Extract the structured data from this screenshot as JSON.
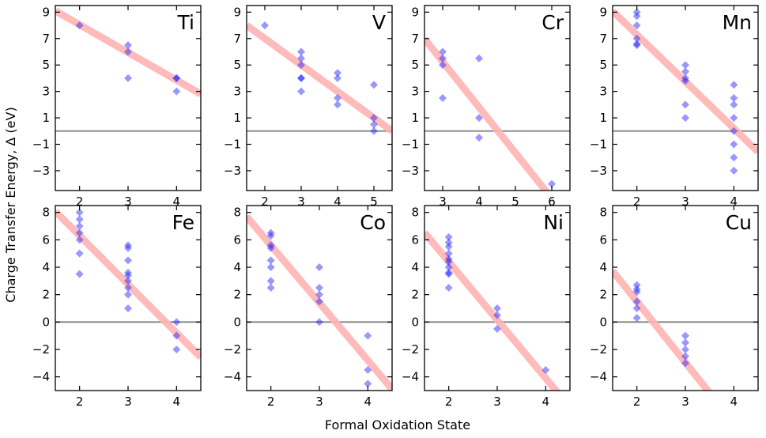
{
  "chart_data": {
    "type": "scatter",
    "xlabel": "Formal Oxidation State",
    "ylabel": "Charge Transfer Energy, Δ (eV)",
    "colors": {
      "points": "#1a1aff",
      "fit": "#ffb3b3",
      "zero_line": "#808080"
    },
    "top_row_yticks": [
      9,
      7,
      5,
      3,
      1,
      -1,
      -3
    ],
    "bottom_row_yticks": [
      8,
      6,
      4,
      2,
      0,
      -2,
      -4
    ],
    "panels": [
      {
        "element": "Ti",
        "xlim": [
          1.5,
          4.5
        ],
        "ylim": [
          -4.5,
          9.5
        ],
        "xticks": [
          2,
          3,
          4
        ],
        "fit": {
          "slope": -2.1,
          "intercept": 12.25
        },
        "points": [
          [
            2,
            8
          ],
          [
            3,
            6.5
          ],
          [
            3,
            6
          ],
          [
            3,
            4
          ],
          [
            4,
            4
          ],
          [
            4,
            4
          ],
          [
            4,
            3
          ]
        ]
      },
      {
        "element": "V",
        "xlim": [
          1.5,
          5.5
        ],
        "ylim": [
          -4.5,
          9.5
        ],
        "xticks": [
          2,
          3,
          4,
          5
        ],
        "fit": {
          "slope": -2.0,
          "intercept": 11.0
        },
        "points": [
          [
            2,
            8
          ],
          [
            3,
            6
          ],
          [
            3,
            5.5
          ],
          [
            3,
            5
          ],
          [
            3,
            4
          ],
          [
            3,
            4
          ],
          [
            3,
            3
          ],
          [
            4,
            4.4
          ],
          [
            4,
            4
          ],
          [
            4,
            2.5
          ],
          [
            4,
            2
          ],
          [
            5,
            3.5
          ],
          [
            5,
            1
          ],
          [
            5,
            0.5
          ],
          [
            5,
            0
          ]
        ]
      },
      {
        "element": "Cr",
        "xlim": [
          2.5,
          6.5
        ],
        "ylim": [
          -4.5,
          9.5
        ],
        "xticks": [
          3,
          4,
          5,
          6
        ],
        "fit": {
          "slope": -3.45,
          "intercept": 15.6
        },
        "points": [
          [
            3,
            6
          ],
          [
            3,
            5.5
          ],
          [
            3,
            5
          ],
          [
            3,
            2.5
          ],
          [
            4,
            5.5
          ],
          [
            4,
            1
          ],
          [
            4,
            -0.5
          ],
          [
            6,
            -4
          ]
        ]
      },
      {
        "element": "Mn",
        "xlim": [
          1.5,
          4.5
        ],
        "ylim": [
          -4.5,
          9.5
        ],
        "xticks": [
          2,
          3,
          4
        ],
        "fit": {
          "slope": -3.55,
          "intercept": 14.4
        },
        "points": [
          [
            2,
            9
          ],
          [
            2,
            8.7
          ],
          [
            2,
            8
          ],
          [
            2,
            7
          ],
          [
            2,
            6.6
          ],
          [
            2,
            6.5
          ],
          [
            3,
            5
          ],
          [
            3,
            4.5
          ],
          [
            3,
            4
          ],
          [
            3,
            3.8
          ],
          [
            3,
            2
          ],
          [
            3,
            1
          ],
          [
            4,
            3.5
          ],
          [
            4,
            2.5
          ],
          [
            4,
            2
          ],
          [
            4,
            1
          ],
          [
            4,
            0
          ],
          [
            4,
            -1
          ],
          [
            4,
            -2
          ],
          [
            4,
            -3
          ]
        ]
      },
      {
        "element": "Fe",
        "xlim": [
          1.5,
          4.5
        ],
        "ylim": [
          -5,
          8.5
        ],
        "xticks": [
          2,
          3,
          4
        ],
        "fit": {
          "slope": -3.55,
          "intercept": 13.4
        },
        "points": [
          [
            2,
            8
          ],
          [
            2,
            7.5
          ],
          [
            2,
            7
          ],
          [
            2,
            6.5
          ],
          [
            2,
            6
          ],
          [
            2,
            5
          ],
          [
            2,
            3.5
          ],
          [
            3,
            5.6
          ],
          [
            3,
            5.4
          ],
          [
            3,
            4.5
          ],
          [
            3,
            3.6
          ],
          [
            3,
            3.4
          ],
          [
            3,
            3
          ],
          [
            3,
            2.5
          ],
          [
            3,
            2
          ],
          [
            3,
            1
          ],
          [
            4,
            0
          ],
          [
            4,
            -1
          ],
          [
            4,
            -2
          ]
        ]
      },
      {
        "element": "Co",
        "xlim": [
          1.5,
          4.5
        ],
        "ylim": [
          -5,
          8.5
        ],
        "xticks": [
          2,
          3,
          4
        ],
        "fit": {
          "slope": -4.2,
          "intercept": 14.0
        },
        "points": [
          [
            2,
            6.5
          ],
          [
            2,
            6.3
          ],
          [
            2,
            5.6
          ],
          [
            2,
            5.4
          ],
          [
            2,
            4.5
          ],
          [
            2,
            4
          ],
          [
            2,
            3
          ],
          [
            2,
            2.5
          ],
          [
            3,
            4
          ],
          [
            3,
            2.5
          ],
          [
            3,
            2
          ],
          [
            3,
            1.5
          ],
          [
            3,
            0
          ],
          [
            4,
            -1
          ],
          [
            4,
            -3.5
          ],
          [
            4,
            -4.5
          ]
        ]
      },
      {
        "element": "Ni",
        "xlim": [
          1.5,
          4.5
        ],
        "ylim": [
          -5,
          8.5
        ],
        "xticks": [
          2,
          3,
          4
        ],
        "fit": {
          "slope": -4.25,
          "intercept": 12.9
        },
        "points": [
          [
            2,
            6.2
          ],
          [
            2,
            5.8
          ],
          [
            2,
            5.5
          ],
          [
            2,
            5
          ],
          [
            2,
            4.6
          ],
          [
            2,
            4.4
          ],
          [
            2,
            4
          ],
          [
            2,
            3.6
          ],
          [
            2,
            3.5
          ],
          [
            2,
            2.5
          ],
          [
            3,
            1
          ],
          [
            3,
            0.5
          ],
          [
            3,
            -0.5
          ],
          [
            4,
            -3.5
          ]
        ]
      },
      {
        "element": "Cu",
        "xlim": [
          1.5,
          4.5
        ],
        "ylim": [
          -5,
          8.5
        ],
        "xticks": [
          2,
          3,
          4
        ],
        "fit": {
          "slope": -4.45,
          "intercept": 10.4
        },
        "points": [
          [
            2,
            2.7
          ],
          [
            2,
            2.4
          ],
          [
            2,
            2.2
          ],
          [
            2,
            1.5
          ],
          [
            2,
            1
          ],
          [
            2,
            0.3
          ],
          [
            3,
            -1
          ],
          [
            3,
            -1.5
          ],
          [
            3,
            -2
          ],
          [
            3,
            -2.5
          ],
          [
            3,
            -3
          ]
        ]
      }
    ]
  }
}
